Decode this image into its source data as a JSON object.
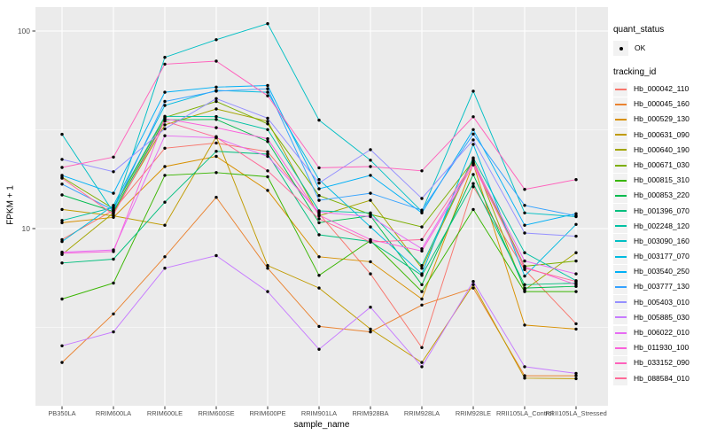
{
  "figure": {
    "background": "#FFFFFF",
    "panel_bg": "#EBEBEB",
    "grid_color": "#FFFFFF",
    "tick_color": "#333333",
    "tick_label_color": "#4D4D4D",
    "point_color": "#000000"
  },
  "axes": {
    "x_title": "sample_name",
    "y_title": "FPKM + 1",
    "y_ticks": [
      {
        "label": "100",
        "value": 100
      },
      {
        "label": "10",
        "value": 10
      }
    ]
  },
  "legend": {
    "quant_title": "quant_status",
    "quant_entries": [
      {
        "label": "OK",
        "marker": "black-point"
      }
    ],
    "tracking_title": "tracking_id",
    "position": "right"
  },
  "chart_data": {
    "type": "line",
    "title": "",
    "xlabel": "sample_name",
    "ylabel": "FPKM + 1",
    "y_scale": "log10",
    "ylim": [
      1.3,
      132
    ],
    "y_major_gridlines": [
      10,
      100
    ],
    "y_minor_gridlines": [
      3.1623,
      31.623
    ],
    "grid": true,
    "legend_position": "right",
    "marker": "small black point (quant_status = OK)",
    "categories": [
      "PB350LA",
      "RRIM600LA",
      "RRIM600LE",
      "RRIM600SE",
      "RRIM600PE",
      "RRIM901LA",
      "RRIM928BA",
      "RRIM928LA",
      "RRIM928LE",
      "RRII105LA_Control",
      "RRII105LA_Stressed"
    ],
    "series": [
      {
        "tracking_id": "Hb_000042_110",
        "color": "#F8766D",
        "values": [
          8.8,
          12.4,
          25.5,
          27.1,
          24.5,
          11.9,
          5.9,
          2.5,
          16.3,
          6.2,
          3.3
        ]
      },
      {
        "tracking_id": "Hb_000045_160",
        "color": "#EA8331",
        "values": [
          2.1,
          3.7,
          7.2,
          14.4,
          6.3,
          3.2,
          3.0,
          4.1,
          5.0,
          1.8,
          1.8
        ]
      },
      {
        "tracking_id": "Hb_000529_130",
        "color": "#D89000",
        "values": [
          10.7,
          11.4,
          20.6,
          23.2,
          15.6,
          7.2,
          6.8,
          4.4,
          21.3,
          3.25,
          3.1
        ]
      },
      {
        "tracking_id": "Hb_000631_090",
        "color": "#C09B00",
        "values": [
          12.5,
          11.6,
          10.4,
          29.2,
          6.5,
          5.0,
          3.1,
          2.1,
          5.2,
          1.75,
          1.74
        ]
      },
      {
        "tracking_id": "Hb_000640_190",
        "color": "#A3A500",
        "values": [
          7.4,
          12.0,
          33.5,
          40.3,
          34.9,
          11.6,
          13.9,
          6.3,
          22.4,
          4.9,
          7.55
        ]
      },
      {
        "tracking_id": "Hb_000671_030",
        "color": "#7CAE00",
        "values": [
          18.2,
          12.6,
          36.5,
          44.0,
          33.9,
          14.7,
          11.8,
          10.2,
          22.0,
          6.45,
          6.85
        ]
      },
      {
        "tracking_id": "Hb_000815_310",
        "color": "#39B600",
        "values": [
          4.4,
          5.3,
          18.6,
          19.2,
          18.3,
          5.8,
          8.7,
          4.8,
          12.5,
          4.8,
          4.8
        ]
      },
      {
        "tracking_id": "Hb_000853_220",
        "color": "#00BB4E",
        "values": [
          14.8,
          12.2,
          35.5,
          35.7,
          27.6,
          10.7,
          11.6,
          5.2,
          18.8,
          5.0,
          5.1
        ]
      },
      {
        "tracking_id": "Hb_001396_070",
        "color": "#00BF7D",
        "values": [
          6.7,
          7.0,
          13.6,
          24.6,
          23.8,
          9.3,
          8.6,
          5.8,
          16.9,
          5.2,
          5.3
        ]
      },
      {
        "tracking_id": "Hb_002248_120",
        "color": "#00C1A3",
        "values": [
          11.0,
          12.8,
          37.0,
          36.9,
          31.7,
          12.3,
          12.0,
          6.5,
          22.8,
          7.55,
          5.45
        ]
      },
      {
        "tracking_id": "Hb_003090_160",
        "color": "#00BFC4",
        "values": [
          30.0,
          12.1,
          73.6,
          90.4,
          109.0,
          35.4,
          22.2,
          12.2,
          49.6,
          12.0,
          11.5
        ]
      },
      {
        "tracking_id": "Hb_003177_070",
        "color": "#00BAE0",
        "values": [
          8.6,
          13.1,
          42.0,
          50.0,
          49.0,
          17.7,
          10.2,
          5.9,
          26.7,
          5.75,
          10.5
        ]
      },
      {
        "tracking_id": "Hb_003540_250",
        "color": "#00B0F6",
        "values": [
          18.6,
          15.1,
          49.0,
          52.0,
          53.0,
          15.9,
          18.6,
          12.0,
          31.7,
          10.4,
          11.9
        ]
      },
      {
        "tracking_id": "Hb_003777_130",
        "color": "#35A2FF",
        "values": [
          16.8,
          12.4,
          44.0,
          49.6,
          51.0,
          13.9,
          15.1,
          12.4,
          30.1,
          13.1,
          11.6
        ]
      },
      {
        "tracking_id": "Hb_005403_010",
        "color": "#9590FF",
        "values": [
          22.4,
          19.4,
          32.0,
          45.5,
          36.2,
          17.0,
          25.1,
          14.2,
          28.1,
          9.5,
          9.15
        ]
      },
      {
        "tracking_id": "Hb_005885_030",
        "color": "#C77CFF",
        "values": [
          2.55,
          3.0,
          6.3,
          7.3,
          4.8,
          2.45,
          4.0,
          2.0,
          5.4,
          2.0,
          1.85
        ]
      },
      {
        "tracking_id": "Hb_006022_010",
        "color": "#E76BF3",
        "values": [
          7.6,
          7.8,
          29.5,
          28.8,
          23.2,
          12.1,
          11.5,
          7.9,
          21.7,
          6.85,
          5.9
        ]
      },
      {
        "tracking_id": "Hb_011930_100",
        "color": "#FA62DB",
        "values": [
          7.5,
          7.65,
          36.0,
          32.4,
          28.5,
          11.7,
          8.8,
          7.7,
          21.0,
          6.4,
          5.2
        ]
      },
      {
        "tracking_id": "Hb_033152_090",
        "color": "#FF62BC",
        "values": [
          20.4,
          23.0,
          68.0,
          70.4,
          47.0,
          20.3,
          20.6,
          19.6,
          36.8,
          15.8,
          17.7
        ]
      },
      {
        "tracking_id": "Hb_088584_010",
        "color": "#FF6A98",
        "values": [
          18.0,
          11.8,
          35.0,
          29.0,
          19.6,
          11.2,
          8.55,
          8.8,
          21.5,
          6.3,
          5.4
        ]
      }
    ]
  }
}
